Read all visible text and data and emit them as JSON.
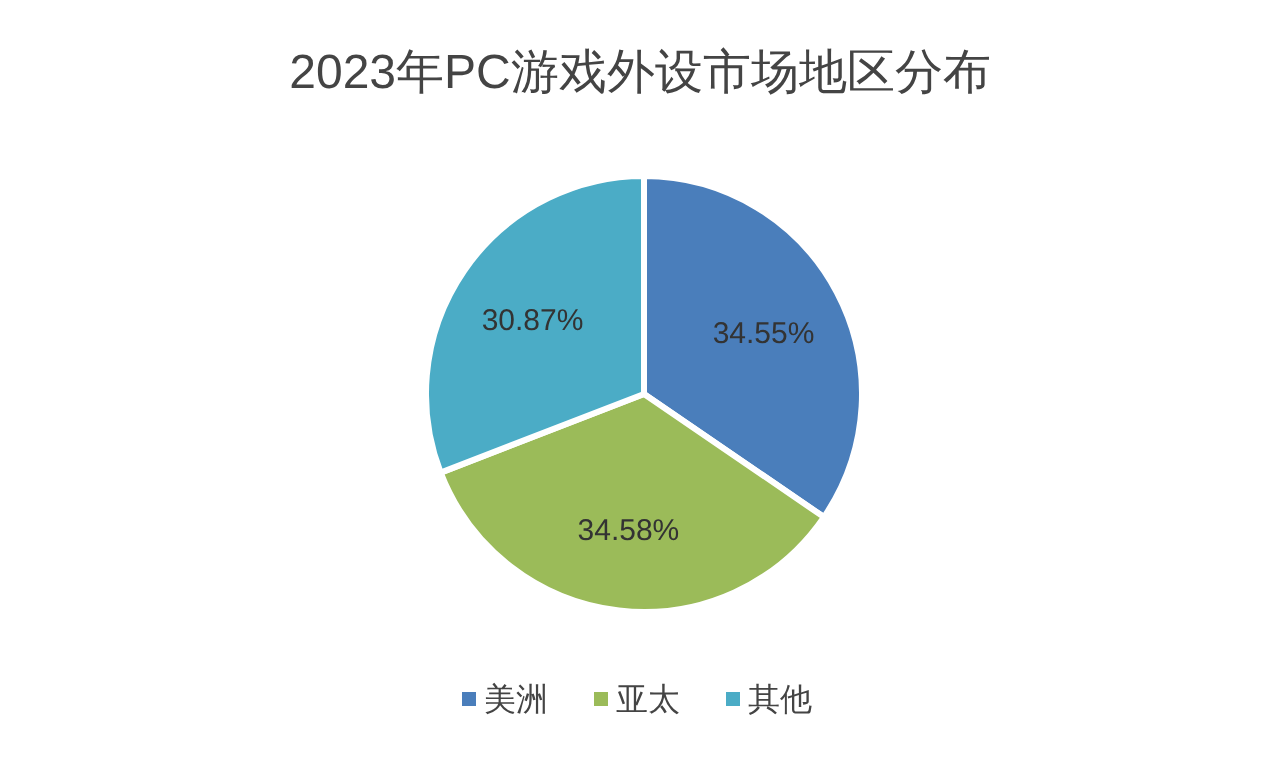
{
  "chart_data": {
    "type": "pie",
    "title": "2023年PC游戏外设市场地区分布",
    "categories": [
      "美洲",
      "亚太",
      "其他"
    ],
    "values": [
      34.55,
      34.58,
      30.87
    ],
    "value_labels": [
      "34.55%",
      "34.58%",
      "30.87%"
    ],
    "colors": [
      "#4a7ebb",
      "#9bbb59",
      "#4bacc6"
    ],
    "legend": "bottom"
  }
}
